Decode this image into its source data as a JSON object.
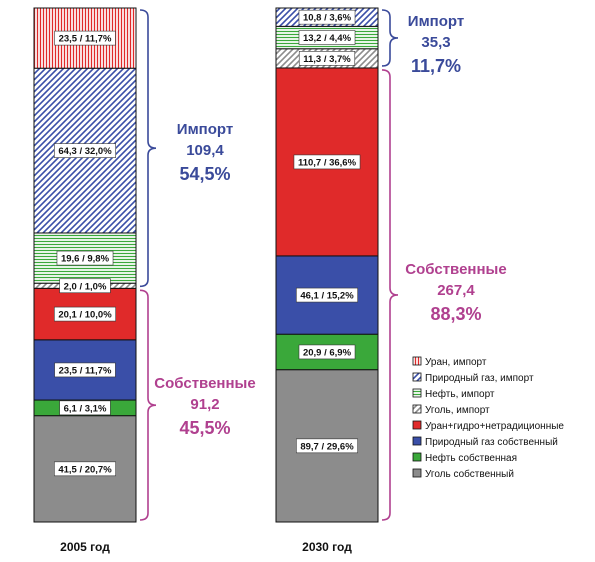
{
  "chart_data": {
    "type": "bar",
    "stacked": true,
    "unit_note": "",
    "categories": [
      "2005 год",
      "2030 год"
    ],
    "series": [
      {
        "name": "Уголь собственный",
        "color": "#8c8c8c",
        "pattern": "solid",
        "values": [
          41.5,
          89.7
        ],
        "percents": [
          20.7,
          29.6
        ]
      },
      {
        "name": "Нефть собственная",
        "color": "#3aa83a",
        "pattern": "solid",
        "values": [
          6.1,
          20.9
        ],
        "percents": [
          3.1,
          6.9
        ]
      },
      {
        "name": "Природный газ собственный",
        "color": "#3a4fa8",
        "pattern": "solid",
        "values": [
          23.5,
          46.1
        ],
        "percents": [
          11.7,
          15.2
        ]
      },
      {
        "name": "Уран+гидро+нетрадиционные",
        "color": "#e02a2a",
        "pattern": "solid",
        "values": [
          20.1,
          110.7
        ],
        "percents": [
          10.0,
          36.6
        ]
      },
      {
        "name": "Уголь, импорт",
        "color": "#8c8c8c",
        "pattern": "hatch-diag",
        "values": [
          2.0,
          11.3
        ],
        "percents": [
          1.0,
          3.7
        ]
      },
      {
        "name": "Нефть, импорт",
        "color": "#3aa83a",
        "pattern": "hatch-horiz",
        "values": [
          19.6,
          13.2
        ],
        "percents": [
          9.8,
          4.4
        ]
      },
      {
        "name": "Природный газ, импорт",
        "color": "#3a4fa8",
        "pattern": "hatch-diag",
        "values": [
          64.3,
          10.8
        ],
        "percents": [
          32.0,
          3.6
        ]
      },
      {
        "name": "Уран, импорт",
        "color": "#e02a2a",
        "pattern": "hatch-vert",
        "values": [
          23.5,
          0
        ],
        "percents": [
          11.7,
          0
        ]
      }
    ],
    "segment_labels": [
      [
        "41,5 / 20,7%",
        "6,1 / 3,1%",
        "23,5 / 11,7%",
        "20,1 / 10,0%",
        "2,0 / 1,0%",
        "19,6 / 9,8%",
        "64,3 / 32,0%",
        "23,5 / 11,7%"
      ],
      [
        "89,7 / 29,6%",
        "20,9 / 6,9%",
        "46,1 / 15,2%",
        "110,7 / 36,6%",
        "11,3 / 3,7%",
        "13,2 / 4,4%",
        "10,8 / 3,6%",
        ""
      ]
    ],
    "annotations": [
      {
        "bar": 0,
        "group": "import",
        "title": "Импорт",
        "value": "109,4",
        "percent": "54,5%",
        "color": "#3a4a9a"
      },
      {
        "bar": 0,
        "group": "own",
        "title": "Собственные",
        "value": "91,2",
        "percent": "45,5%",
        "color": "#b0408f"
      },
      {
        "bar": 1,
        "group": "import",
        "title": "Импорт",
        "value": "35,3",
        "percent": "11,7%",
        "color": "#3a4a9a"
      },
      {
        "bar": 1,
        "group": "own",
        "title": "Собственные",
        "value": "267,4",
        "percent": "88,3%",
        "color": "#b0408f"
      }
    ],
    "legend_position": "right",
    "legend_order": [
      7,
      6,
      5,
      4,
      3,
      2,
      1,
      0
    ]
  }
}
